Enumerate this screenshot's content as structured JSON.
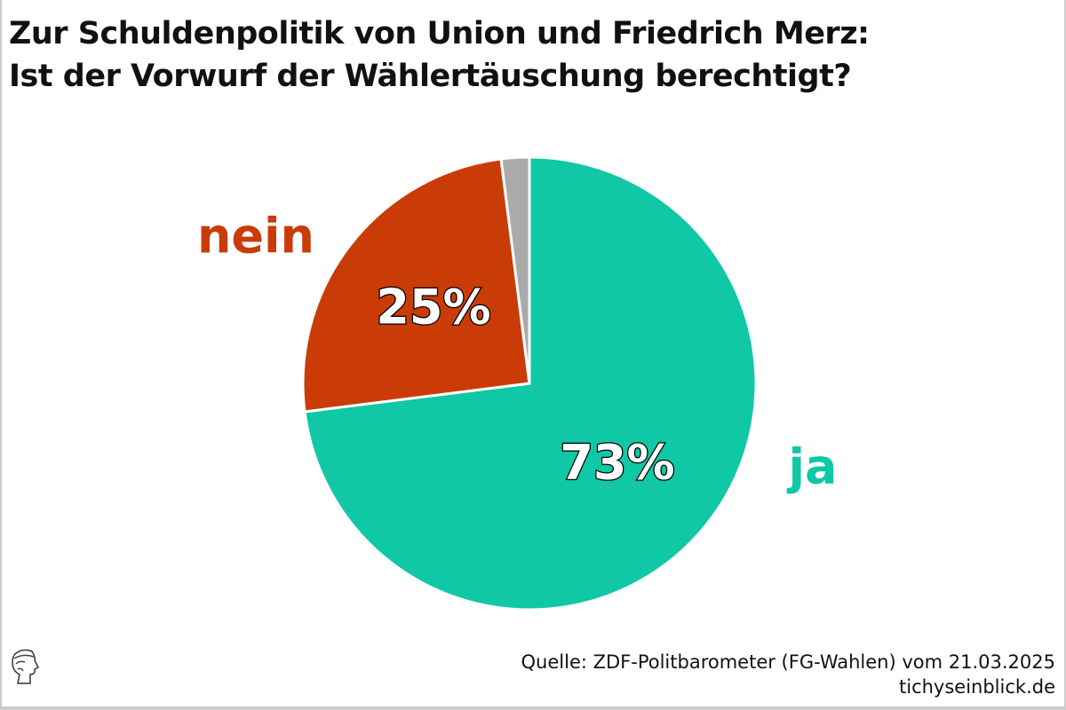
{
  "title": {
    "line1": "Zur Schuldenpolitik von Union und Friedrich Merz:",
    "line2": "Ist der Vorwurf der Wählertäuschung berechtigt?"
  },
  "chart_data": {
    "type": "pie",
    "title": "Zur Schuldenpolitik von Union und Friedrich Merz: Ist der Vorwurf der Wählertäuschung berechtigt?",
    "slices": [
      {
        "label": "ja",
        "value": 73,
        "value_label": "73%",
        "color": "#10C8A5"
      },
      {
        "label": "nein",
        "value": 25,
        "value_label": "25%",
        "color": "#C93C08"
      },
      {
        "label": "",
        "value": 2,
        "value_label": "",
        "color": "#AAAAAA"
      }
    ],
    "start": "12 o'clock, clockwise"
  },
  "footer": {
    "source": "Quelle: ZDF-Politbarometer (FG-Wahlen) vom 21.03.2025",
    "site": "tichyseinblick.de"
  }
}
